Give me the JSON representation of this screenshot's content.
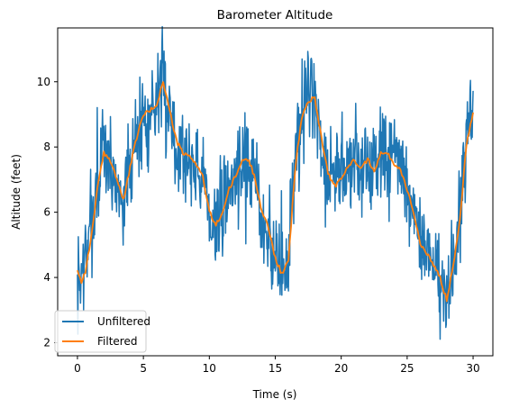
{
  "chart_data": {
    "type": "line",
    "title": "Barometer Altitude",
    "xlabel": "Time (s)",
    "ylabel": "Altitude (feet)",
    "xlim": [
      -1.5,
      31.5
    ],
    "ylim": [
      1.6,
      11.65
    ],
    "xticks": [
      0,
      5,
      10,
      15,
      20,
      25,
      30
    ],
    "yticks": [
      2,
      4,
      6,
      8,
      10
    ],
    "grid": false,
    "legend_position": "lower-left",
    "series": [
      {
        "name": "Unfiltered",
        "color": "#1f77b4",
        "noise_amplitude": 0.75,
        "noise_seed": 7,
        "x": [
          0,
          0.3,
          0.6,
          1.0,
          1.5,
          2.0,
          2.5,
          3.0,
          3.5,
          4.0,
          4.5,
          5.0,
          5.5,
          6.0,
          6.5,
          7.0,
          7.5,
          8.0,
          8.5,
          9.0,
          9.5,
          10.0,
          10.5,
          11.0,
          11.5,
          12.0,
          12.5,
          13.0,
          13.5,
          14.0,
          14.5,
          15.0,
          15.5,
          16.0,
          16.5,
          17.0,
          17.5,
          18.0,
          18.5,
          19.0,
          19.5,
          20.0,
          20.5,
          21.0,
          21.5,
          22.0,
          22.5,
          23.0,
          23.5,
          24.0,
          24.5,
          25.0,
          25.5,
          26.0,
          26.5,
          27.0,
          27.5,
          28.0,
          28.5,
          29.0,
          29.5,
          30.0
        ],
        "values": [
          3.7,
          4.0,
          4.6,
          5.6,
          6.8,
          7.8,
          7.6,
          6.8,
          6.4,
          7.5,
          8.4,
          9.0,
          9.2,
          9.4,
          9.9,
          9.0,
          8.1,
          7.8,
          7.7,
          7.5,
          7.0,
          5.9,
          5.6,
          6.1,
          6.8,
          7.2,
          7.7,
          7.6,
          6.9,
          6.0,
          5.4,
          4.6,
          4.1,
          4.7,
          7.5,
          9.0,
          9.4,
          9.5,
          8.2,
          7.2,
          6.8,
          7.0,
          7.5,
          7.6,
          7.4,
          7.6,
          7.2,
          7.8,
          7.8,
          7.5,
          7.3,
          6.6,
          5.9,
          5.0,
          4.7,
          4.3,
          3.9,
          3.3,
          4.4,
          5.8,
          8.1,
          9.3
        ]
      },
      {
        "name": "Filtered",
        "color": "#ff7f0e",
        "x": [
          0,
          0.3,
          0.6,
          1.0,
          1.5,
          2.0,
          2.5,
          3.0,
          3.5,
          4.0,
          4.5,
          5.0,
          5.5,
          6.0,
          6.5,
          7.0,
          7.5,
          8.0,
          8.5,
          9.0,
          9.5,
          10.0,
          10.5,
          11.0,
          11.5,
          12.0,
          12.5,
          13.0,
          13.5,
          14.0,
          14.5,
          15.0,
          15.5,
          16.0,
          16.5,
          17.0,
          17.5,
          18.0,
          18.5,
          19.0,
          19.5,
          20.0,
          20.5,
          21.0,
          21.5,
          22.0,
          22.5,
          23.0,
          23.5,
          24.0,
          24.5,
          25.0,
          25.5,
          26.0,
          26.5,
          27.0,
          27.5,
          28.0,
          28.5,
          29.0,
          29.5,
          30.0
        ],
        "values": [
          4.25,
          3.85,
          4.2,
          5.1,
          6.7,
          7.8,
          7.6,
          7.0,
          6.35,
          7.4,
          8.3,
          9.0,
          9.1,
          9.3,
          10.0,
          9.1,
          8.2,
          7.8,
          7.7,
          7.5,
          7.1,
          6.0,
          5.6,
          6.0,
          6.7,
          7.1,
          7.6,
          7.6,
          7.0,
          6.0,
          5.5,
          4.6,
          4.1,
          4.5,
          7.3,
          8.9,
          9.4,
          9.5,
          8.3,
          7.2,
          6.8,
          7.0,
          7.4,
          7.6,
          7.4,
          7.6,
          7.3,
          7.8,
          7.8,
          7.5,
          7.3,
          6.7,
          6.0,
          5.0,
          4.7,
          4.4,
          4.0,
          3.3,
          4.4,
          5.8,
          8.1,
          9.1
        ]
      }
    ]
  }
}
